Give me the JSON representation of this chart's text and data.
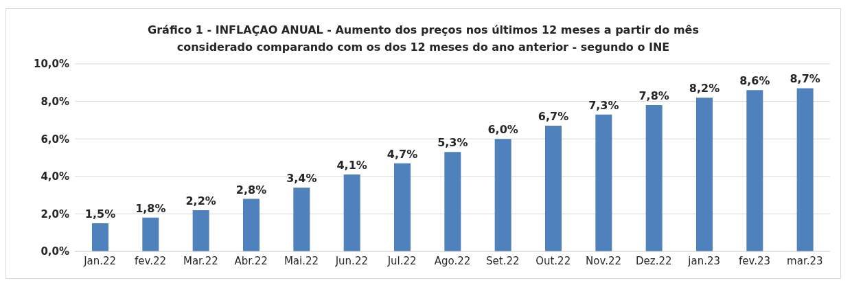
{
  "chart_data": {
    "type": "bar",
    "title": "Gráfico 1 - INFLAÇAO ANUAL - Aumento dos preços nos últimos 12 meses a partir do mês\nconsiderado comparando com os dos 12 meses do ano anterior - segundo o INE",
    "categories": [
      "Jan.22",
      "fev.22",
      "Mar.22",
      "Abr.22",
      "Mai.22",
      "Jun.22",
      "Jul.22",
      "Ago.22",
      "Set.22",
      "Out.22",
      "Nov.22",
      "Dez.22",
      "jan.23",
      "fev.23",
      "mar.23"
    ],
    "values": [
      1.5,
      1.8,
      2.2,
      2.8,
      3.4,
      4.1,
      4.7,
      5.3,
      6.0,
      6.7,
      7.3,
      7.8,
      8.2,
      8.6,
      8.7
    ],
    "value_labels": [
      "1,5%",
      "1,8%",
      "2,2%",
      "2,8%",
      "3,4%",
      "4,1%",
      "4,7%",
      "5,3%",
      "6,0%",
      "6,7%",
      "7,3%",
      "7,8%",
      "8,2%",
      "8,6%",
      "8,7%"
    ],
    "color": "#4f81bd",
    "ylim": [
      0,
      10
    ],
    "yticks": [
      {
        "value": 0,
        "label": "0,0%"
      },
      {
        "value": 2,
        "label": "2,0%"
      },
      {
        "value": 4,
        "label": "4,0%"
      },
      {
        "value": 6,
        "label": "6,0%"
      },
      {
        "value": 8,
        "label": "8,0%"
      },
      {
        "value": 10,
        "label": "10,0%"
      }
    ],
    "grid": "y"
  }
}
